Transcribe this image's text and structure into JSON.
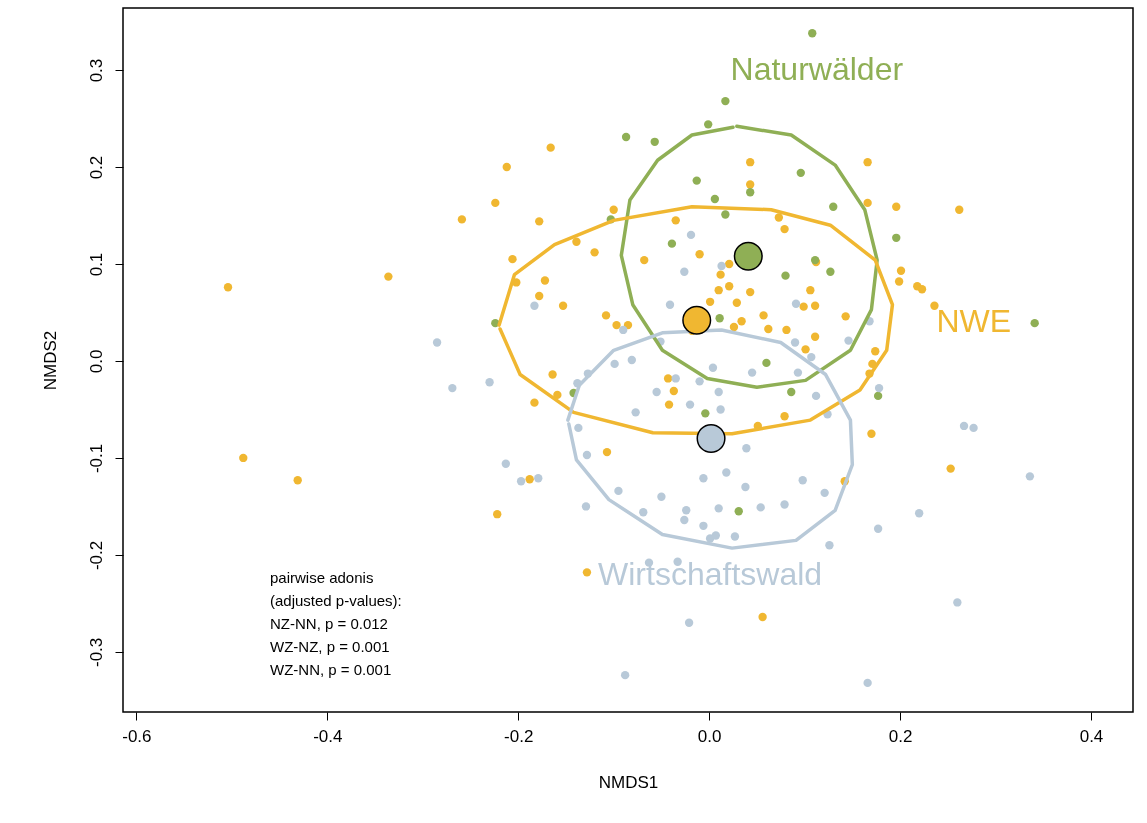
{
  "chart_data": {
    "type": "scatter",
    "xlabel": "NMDS1",
    "ylabel": "NMDS2",
    "xlim": [
      -0.614,
      0.444
    ],
    "ylim": [
      -0.362,
      0.364
    ],
    "xticks": [
      -0.6,
      -0.4,
      -0.2,
      {
        "value": 0,
        "label": "0.0"
      },
      0.2,
      0.4
    ],
    "yticks": [
      -0.3,
      -0.2,
      -0.1,
      {
        "value": 0,
        "label": "0.0"
      },
      0.1,
      0.2,
      0.3
    ],
    "annotations": [
      "pairwise adonis",
      "(adjusted p-values):",
      "NZ-NN, p = 0.012",
      "WZ-NZ, p = 0.001",
      "WZ-NN, p = 0.001"
    ],
    "series": [
      {
        "marker": "circle",
        "color": "#f0b731",
        "x": [
          -0.504,
          -0.488,
          -0.431,
          -0.336,
          -0.259,
          -0.224,
          -0.212,
          -0.206,
          -0.202,
          -0.222,
          -0.188,
          -0.183,
          -0.178,
          -0.172,
          -0.178,
          -0.166,
          -0.153,
          -0.139,
          -0.159,
          -0.164,
          -0.12,
          -0.128,
          -0.107,
          -0.108,
          -0.1,
          -0.097,
          -0.085,
          -0.068,
          -0.035,
          -0.037,
          -0.042,
          -0.018,
          -0.01,
          0.001,
          0.01,
          0.012,
          0.021,
          0.021,
          0.029,
          0.026,
          0.034,
          0.043,
          0.043,
          0.043,
          0.057,
          0.062,
          0.073,
          0.079,
          0.081,
          0.099,
          0.101,
          0.106,
          0.111,
          0.112,
          0.111,
          0.143,
          0.166,
          0.166,
          0.196,
          0.174,
          0.171,
          0.168,
          0.17,
          0.201,
          0.199,
          0.218,
          0.223,
          0.236,
          0.262,
          0.253,
          0.142,
          0.051,
          0.079,
          0.056,
          -0.043
        ],
        "values": [
          0.076,
          -0.1,
          -0.123,
          0.087,
          0.146,
          0.163,
          0.2,
          0.105,
          0.081,
          -0.158,
          -0.122,
          -0.043,
          0.067,
          0.083,
          0.144,
          0.22,
          0.057,
          0.123,
          -0.035,
          -0.014,
          0.112,
          -0.218,
          -0.094,
          0.047,
          0.156,
          0.037,
          0.037,
          0.104,
          0.145,
          -0.031,
          -0.045,
          0.031,
          0.11,
          0.061,
          0.073,
          0.089,
          0.1,
          0.077,
          0.06,
          0.035,
          0.041,
          0.182,
          0.205,
          0.071,
          0.047,
          0.033,
          0.148,
          0.136,
          0.032,
          0.056,
          0.012,
          0.073,
          0.057,
          0.102,
          0.025,
          0.046,
          0.205,
          0.163,
          0.159,
          0.01,
          -0.003,
          -0.013,
          -0.075,
          0.093,
          0.082,
          0.077,
          0.074,
          0.057,
          0.156,
          -0.111,
          -0.124,
          -0.067,
          -0.057,
          -0.264,
          -0.018
        ]
      },
      {
        "marker": "circle",
        "color": "#8faf55",
        "x": [
          0.108,
          0.017,
          -0.001,
          -0.087,
          -0.057,
          -0.013,
          0.006,
          0.043,
          0.017,
          0.096,
          0.13,
          -0.103,
          -0.039,
          0.011,
          -0.224,
          0.196,
          0.111,
          0.127,
          0.08,
          0.341,
          0.06,
          -0.142,
          -0.004,
          0.031,
          0.086,
          0.177
        ],
        "values": [
          0.338,
          0.268,
          0.244,
          0.231,
          0.226,
          0.186,
          0.167,
          0.174,
          0.151,
          0.194,
          0.159,
          0.146,
          0.121,
          0.044,
          0.039,
          0.127,
          0.104,
          0.092,
          0.088,
          0.039,
          -0.002,
          -0.033,
          -0.054,
          -0.155,
          -0.032,
          -0.036
        ]
      },
      {
        "marker": "circle",
        "color": "#b8c9d8",
        "x": [
          -0.285,
          -0.269,
          -0.23,
          -0.213,
          -0.197,
          -0.179,
          -0.183,
          -0.138,
          -0.127,
          -0.099,
          -0.081,
          -0.137,
          -0.128,
          -0.095,
          -0.129,
          -0.077,
          -0.05,
          -0.069,
          -0.055,
          -0.035,
          -0.02,
          -0.01,
          0.004,
          0.01,
          0.012,
          0.039,
          0.045,
          -0.006,
          0.018,
          0.038,
          -0.024,
          -0.026,
          0.01,
          0.054,
          -0.006,
          0.001,
          0.007,
          0.027,
          -0.063,
          -0.033,
          -0.021,
          -0.088,
          0.09,
          0.107,
          0.093,
          0.112,
          0.124,
          0.178,
          0.267,
          0.277,
          0.336,
          0.22,
          0.177,
          0.126,
          0.098,
          0.121,
          0.079,
          0.26,
          0.166,
          0.168,
          0.146,
          0.091,
          -0.019,
          -0.026,
          0.013,
          -0.041,
          -0.09,
          -0.051
        ],
        "values": [
          0.019,
          -0.028,
          -0.022,
          -0.106,
          -0.124,
          -0.121,
          0.057,
          -0.023,
          -0.013,
          -0.003,
          0.001,
          -0.069,
          -0.097,
          -0.134,
          -0.15,
          -0.053,
          -0.14,
          -0.156,
          -0.032,
          -0.018,
          -0.045,
          -0.021,
          -0.007,
          -0.032,
          -0.05,
          -0.09,
          -0.012,
          -0.121,
          -0.115,
          -0.13,
          -0.154,
          -0.164,
          -0.152,
          -0.151,
          -0.17,
          -0.183,
          -0.18,
          -0.181,
          -0.208,
          -0.207,
          -0.27,
          -0.324,
          0.019,
          0.004,
          -0.012,
          -0.036,
          -0.055,
          -0.028,
          -0.067,
          -0.069,
          -0.119,
          -0.157,
          -0.173,
          -0.19,
          -0.123,
          -0.136,
          -0.148,
          -0.249,
          -0.332,
          0.041,
          0.021,
          0.059,
          0.13,
          0.092,
          0.098,
          0.058,
          0.032,
          0.02
        ]
      },
      {
        "type": "line",
        "name": "Naturwälder",
        "color": "#8faf55",
        "x": [
          0.029,
          0.086,
          0.132,
          0.163,
          0.176,
          0.17,
          0.148,
          0.101,
          0.05,
          -0.002,
          -0.049,
          -0.08,
          -0.092,
          -0.083,
          -0.054,
          -0.018,
          0.025
        ],
        "values": [
          0.242,
          0.233,
          0.202,
          0.156,
          0.104,
          0.053,
          0.011,
          -0.02,
          -0.027,
          -0.018,
          0.011,
          0.058,
          0.109,
          0.166,
          0.207,
          0.233,
          0.241
        ]
      },
      {
        "type": "line",
        "name": "NWE",
        "color": "#f0b731",
        "x": [
          -0.22,
          -0.204,
          -0.162,
          -0.1,
          -0.018,
          0.065,
          0.127,
          0.174,
          0.192,
          0.186,
          0.158,
          0.106,
          0.024,
          -0.059,
          -0.142,
          -0.198,
          -0.219
        ],
        "values": [
          0.037,
          0.089,
          0.12,
          0.145,
          0.159,
          0.156,
          0.14,
          0.104,
          0.058,
          0.011,
          -0.03,
          -0.061,
          -0.075,
          -0.074,
          -0.053,
          -0.014,
          0.033
        ]
      },
      {
        "type": "line",
        "name": "Wirtschaftswald",
        "color": "#b8c9d8",
        "x": [
          -0.148,
          -0.136,
          -0.1,
          -0.049,
          0.013,
          0.075,
          0.122,
          0.148,
          0.15,
          0.132,
          0.091,
          0.024,
          -0.049,
          -0.105,
          -0.139,
          -0.147
        ],
        "values": [
          -0.061,
          -0.025,
          0.011,
          0.029,
          0.032,
          0.019,
          -0.014,
          -0.061,
          -0.107,
          -0.154,
          -0.185,
          -0.193,
          -0.179,
          -0.143,
          -0.102,
          -0.065
        ]
      },
      {
        "type": "bubble",
        "color": "#8faf55",
        "x": [
          0.041
        ],
        "values": [
          0.108
        ],
        "sizes": [
          1
        ]
      },
      {
        "type": "bubble",
        "color": "#f0b731",
        "x": [
          -0.013
        ],
        "values": [
          0.042
        ],
        "sizes": [
          1
        ]
      },
      {
        "type": "bubble",
        "color": "#b8c9d8",
        "x": [
          0.002
        ],
        "values": [
          -0.08
        ],
        "sizes": [
          1
        ]
      }
    ]
  }
}
